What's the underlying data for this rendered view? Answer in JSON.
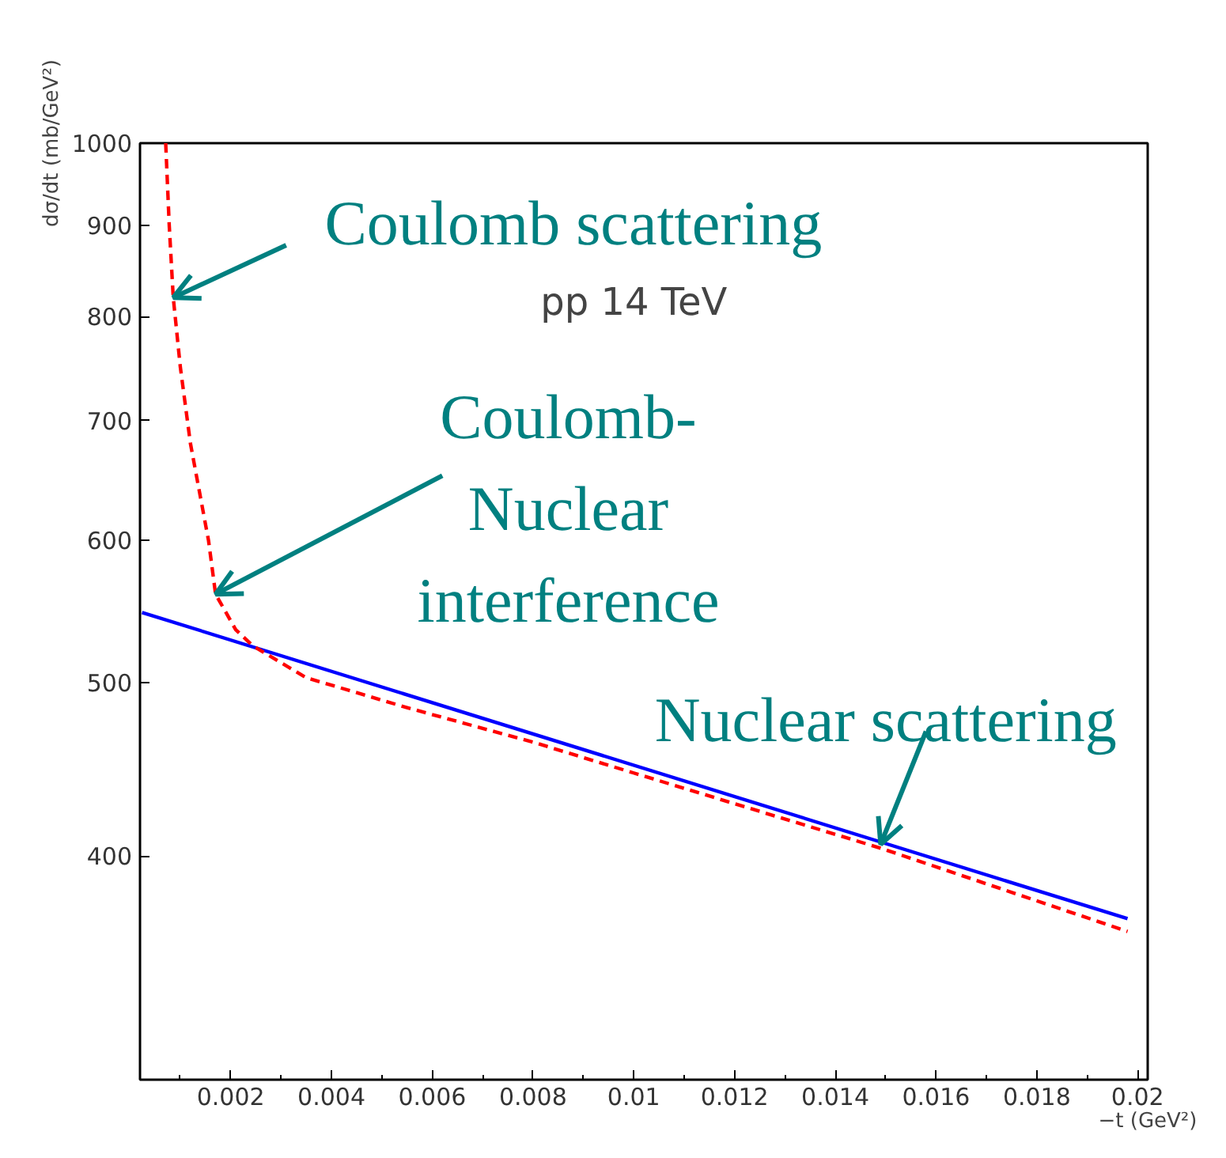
{
  "chart_data": {
    "type": "line",
    "xlabel": "−t (GeV²)",
    "ylabel": "dσ/dt (mb/GeV²)",
    "log": "y",
    "xlim": [
      0.0002,
      0.0202
    ],
    "ylim": [
      300,
      1000
    ],
    "xticks": [
      {
        "value": 0.001,
        "label": null
      },
      0.002,
      {
        "value": 0.003,
        "label": null
      },
      0.004,
      {
        "value": 0.005,
        "label": null
      },
      0.006,
      {
        "value": 0.007,
        "label": null
      },
      0.008,
      {
        "value": 0.009,
        "label": null
      },
      0.01,
      {
        "value": 0.011,
        "label": null
      },
      0.012,
      {
        "value": 0.013,
        "label": null
      },
      0.014,
      {
        "value": 0.015,
        "label": null
      },
      0.016,
      {
        "value": 0.017,
        "label": null
      },
      0.018,
      {
        "value": 0.019,
        "label": null
      },
      0.02
    ],
    "yticks": [
      400,
      500,
      600,
      700,
      800,
      900,
      1000
    ],
    "grid": false,
    "series": [
      {
        "color": "#0000ff",
        "line_style": "solid",
        "x": [
          0.00024,
          0.0198
        ],
        "values": [
          547,
          369
        ]
      },
      {
        "color": "#ff0000",
        "line_style": "dashed",
        "x": [
          0.00071,
          0.00078,
          0.00086,
          0.001,
          0.0012,
          0.00156,
          0.0017,
          0.0021,
          0.00244,
          0.0035,
          0.0055,
          0.008,
          0.01,
          0.0149,
          0.0198
        ],
        "values": [
          1000,
          900,
          820,
          750,
          680,
          600,
          560,
          535,
          524,
          503,
          484,
          463,
          445,
          404,
          363
        ]
      }
    ],
    "annotations": [
      {
        "text": "Coulomb scattering",
        "x": 0.00086,
        "y": 820
      },
      "pp 14 TeV",
      {
        "text": "Coulomb-\nNuclear\ninterference",
        "x": 0.0017,
        "y": 560
      },
      {
        "text": "Nuclear scattering",
        "x": 0.0149,
        "y": 406
      }
    ]
  }
}
